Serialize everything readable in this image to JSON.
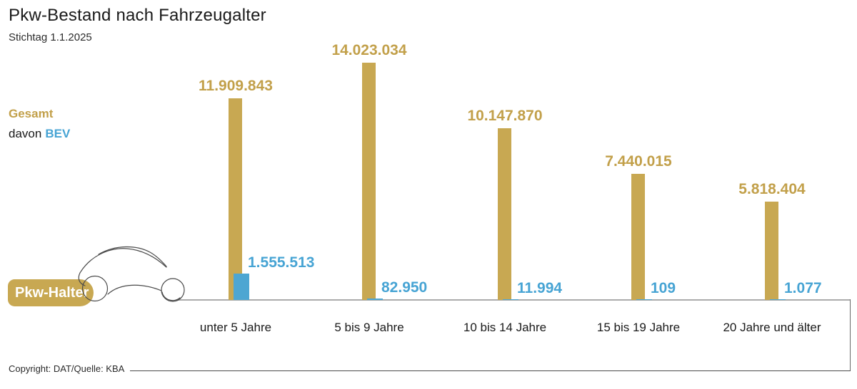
{
  "header": {
    "title": "Pkw-Bestand nach Fahrzeugalter",
    "subtitle": "Stichtag 1.1.2025"
  },
  "legend": {
    "gesamt": "Gesamt",
    "davon": "davon",
    "bev": "BEV"
  },
  "badge": {
    "label": "Pkw-Halter"
  },
  "footer": {
    "copyright": "Copyright: DAT/Quelle: KBA"
  },
  "colors": {
    "gold_bar": "#c8a852",
    "gold_text": "#c2a04a",
    "blue_bar": "#4da6d2",
    "blue_text": "#47a4d4"
  },
  "chart_data": {
    "type": "bar",
    "title": "Pkw-Bestand nach Fahrzeugalter",
    "subtitle": "Stichtag 1.1.2025",
    "categories": [
      "unter 5 Jahre",
      "5 bis 9 Jahre",
      "10 bis 14 Jahre",
      "15 bis 19 Jahre",
      "20 Jahre und älter"
    ],
    "series": [
      {
        "name": "Gesamt",
        "color": "#c8a852",
        "values": [
          11909843,
          14023034,
          10147870,
          7440015,
          5818404
        ],
        "labels": [
          "11.909.843",
          "14.023.034",
          "10.147.870",
          "7.440.015",
          "5.818.404"
        ]
      },
      {
        "name": "davon BEV",
        "color": "#4da6d2",
        "values": [
          1555513,
          82950,
          11994,
          109,
          1077
        ],
        "labels": [
          "1.555.513",
          "82.950",
          "11.994",
          "109",
          "1.077"
        ]
      }
    ],
    "xlabel": "",
    "ylabel": "",
    "ylim": [
      0,
      14023034
    ],
    "grid": false,
    "legend_position": "left",
    "value_labels": "shown above bars (German thousands-dot format)",
    "source": "Copyright: DAT/Quelle: KBA"
  }
}
